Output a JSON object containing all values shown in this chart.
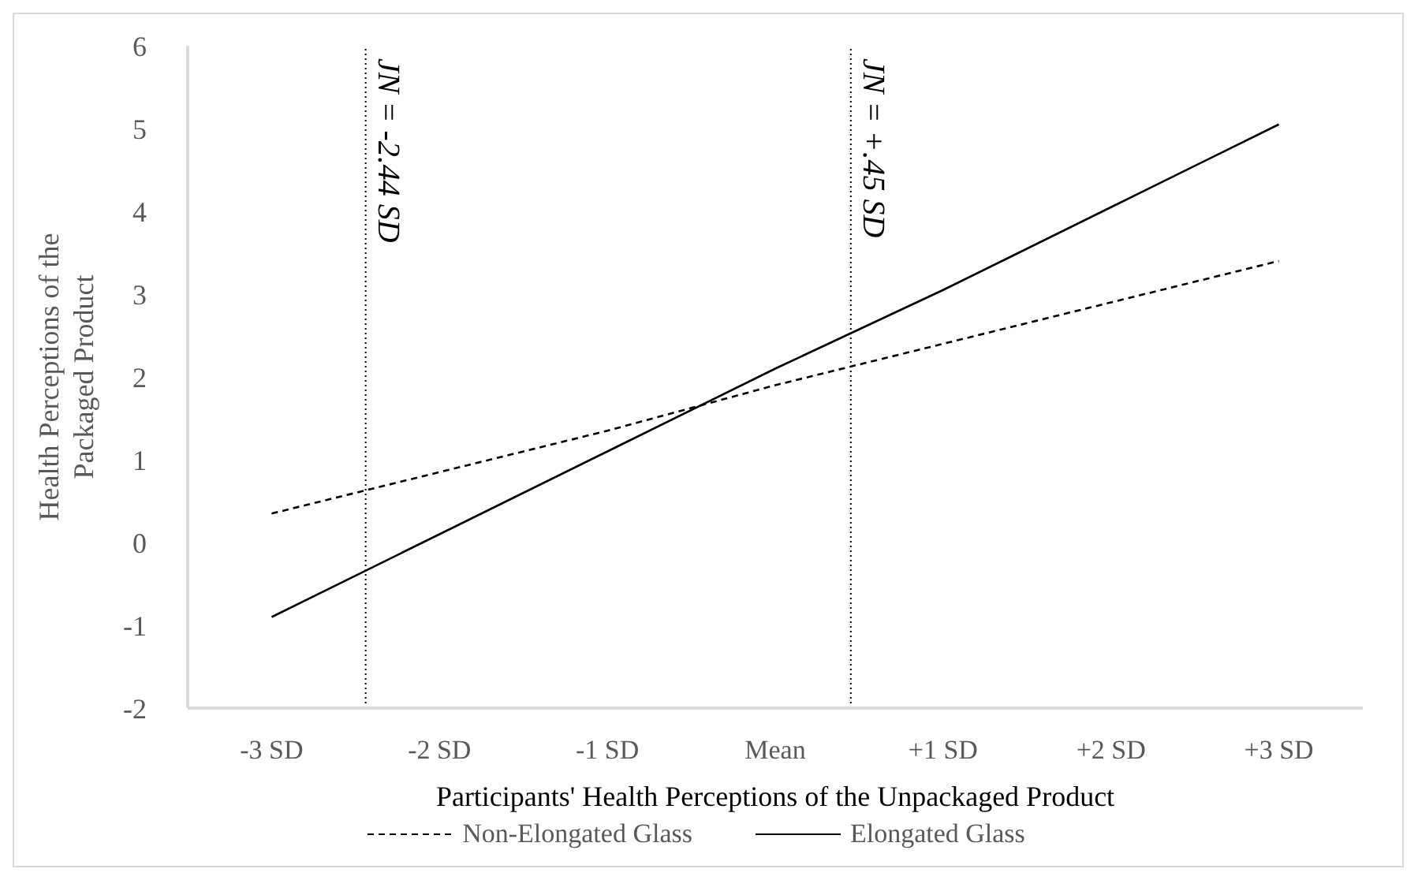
{
  "chart_data": {
    "type": "line",
    "xlabel": "Participants' Health Perceptions of the Unpackaged Product",
    "ylabel": "Health Perceptions of the Packaged Product",
    "x": [
      -3,
      -2,
      -1,
      0,
      1,
      2,
      3
    ],
    "xlim": [
      -3.5,
      3.5
    ],
    "xticks": [
      {
        "value": -3,
        "label": "-3 SD"
      },
      {
        "value": -2,
        "label": "-2 SD"
      },
      {
        "value": -1,
        "label": "-1 SD"
      },
      {
        "value": 0,
        "label": "Mean"
      },
      {
        "value": 1,
        "label": "+1 SD"
      },
      {
        "value": 2,
        "label": "+2 SD"
      },
      {
        "value": 3,
        "label": "+3 SD"
      }
    ],
    "ylim": [
      -2,
      6
    ],
    "yticks": [
      -2,
      -1,
      0,
      1,
      2,
      3,
      4,
      5,
      6
    ],
    "series": [
      {
        "name": "Non-Elongated Glass",
        "color": "#000000",
        "line_style": "dashed",
        "values": [
          0.35,
          0.85,
          1.35,
          1.9,
          2.4,
          2.9,
          3.4
        ]
      },
      {
        "name": "Elongated Glass",
        "color": "#000000",
        "line_style": "solid",
        "values": [
          -0.9,
          0.1,
          1.1,
          2.1,
          3.05,
          4.05,
          5.05
        ]
      }
    ],
    "ref_lines": [
      {
        "axis": "x",
        "value": -2.44,
        "label": "JN = -2.44 SD",
        "color": "#000000",
        "line_style": "dotted"
      },
      {
        "axis": "x",
        "value": 0.45,
        "label": "JN = +.45 SD",
        "color": "#000000",
        "line_style": "dotted"
      }
    ],
    "grid": false,
    "legend": "bottom",
    "marker": "none"
  }
}
